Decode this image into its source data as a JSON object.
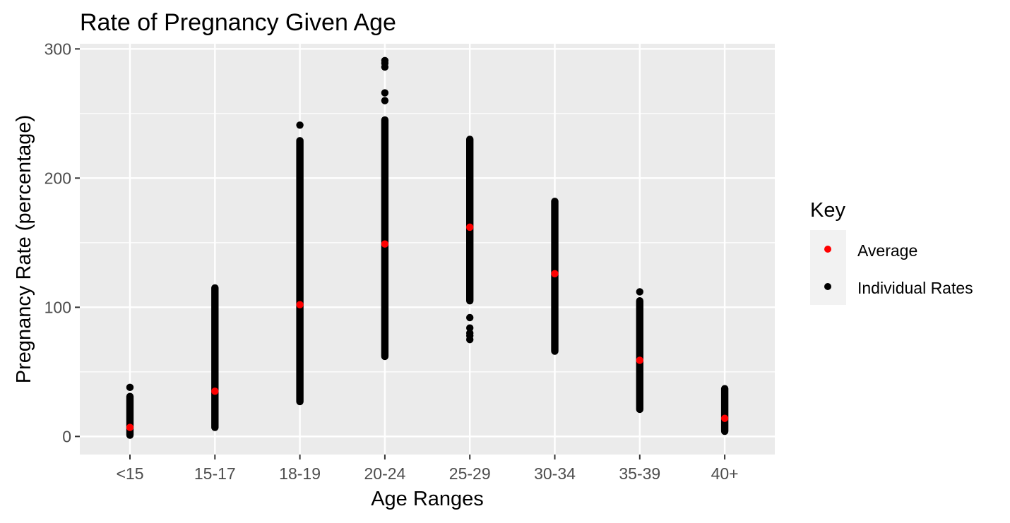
{
  "chart_data": {
    "type": "scatter",
    "title": "Rate of Pregnancy Given Age",
    "xlabel": "Age Ranges",
    "ylabel": "Pregnancy Rate (percentage)",
    "categories": [
      "<15",
      "15-17",
      "18-19",
      "20-24",
      "25-29",
      "30-34",
      "35-39",
      "40+"
    ],
    "yticks": [
      0,
      100,
      200,
      300
    ],
    "ylim": [
      -14,
      304
    ],
    "grid": true,
    "legend": {
      "title": "Key",
      "position": "right",
      "entries": [
        {
          "label": "Average",
          "color": "#ff0000"
        },
        {
          "label": "Individual Rates",
          "color": "#000000"
        }
      ]
    },
    "series": [
      {
        "name": "Individual Rates",
        "color": "#000000",
        "ranges": [
          {
            "category": "<15",
            "min": 1,
            "max": 31,
            "outliers": [
              38
            ]
          },
          {
            "category": "15-17",
            "min": 7,
            "max": 115,
            "outliers": []
          },
          {
            "category": "18-19",
            "min": 27,
            "max": 229,
            "outliers": [
              241
            ]
          },
          {
            "category": "20-24",
            "min": 62,
            "max": 245,
            "outliers": [
              260,
              266,
              286,
              289,
              291
            ]
          },
          {
            "category": "25-29",
            "min": 105,
            "max": 230,
            "outliers": [
              75,
              78,
              80,
              84,
              92
            ]
          },
          {
            "category": "30-34",
            "min": 66,
            "max": 182,
            "outliers": []
          },
          {
            "category": "35-39",
            "min": 21,
            "max": 105,
            "outliers": [
              112
            ]
          },
          {
            "category": "40+",
            "min": 4,
            "max": 37,
            "outliers": []
          }
        ]
      },
      {
        "name": "Average",
        "color": "#ff0000",
        "values": [
          7,
          35,
          102,
          149,
          162,
          126,
          59,
          14
        ]
      }
    ]
  }
}
